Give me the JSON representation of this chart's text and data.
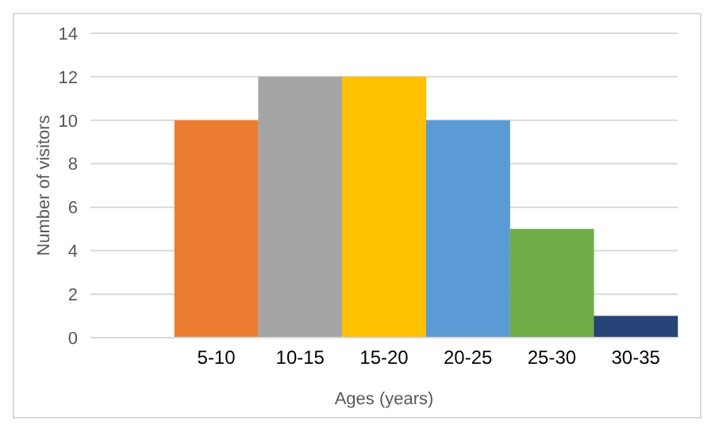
{
  "chart_data": {
    "type": "bar",
    "xlabel": "Ages (years)",
    "ylabel": "Number of visitors",
    "categories": [
      null,
      "5-10",
      "10-15",
      "15-20",
      "20-25",
      "25-30",
      "30-35"
    ],
    "values": [
      null,
      10,
      12,
      12,
      10,
      5,
      1
    ],
    "colors": [
      "#ed7d31",
      "#ed7d31",
      "#a5a5a5",
      "#ffc000",
      "#5b9bd5",
      "#70ad47",
      "#264478"
    ],
    "ylim": [
      0,
      14
    ],
    "yticks": [
      0,
      2,
      4,
      6,
      8,
      10,
      12,
      14
    ],
    "grid": "y"
  }
}
